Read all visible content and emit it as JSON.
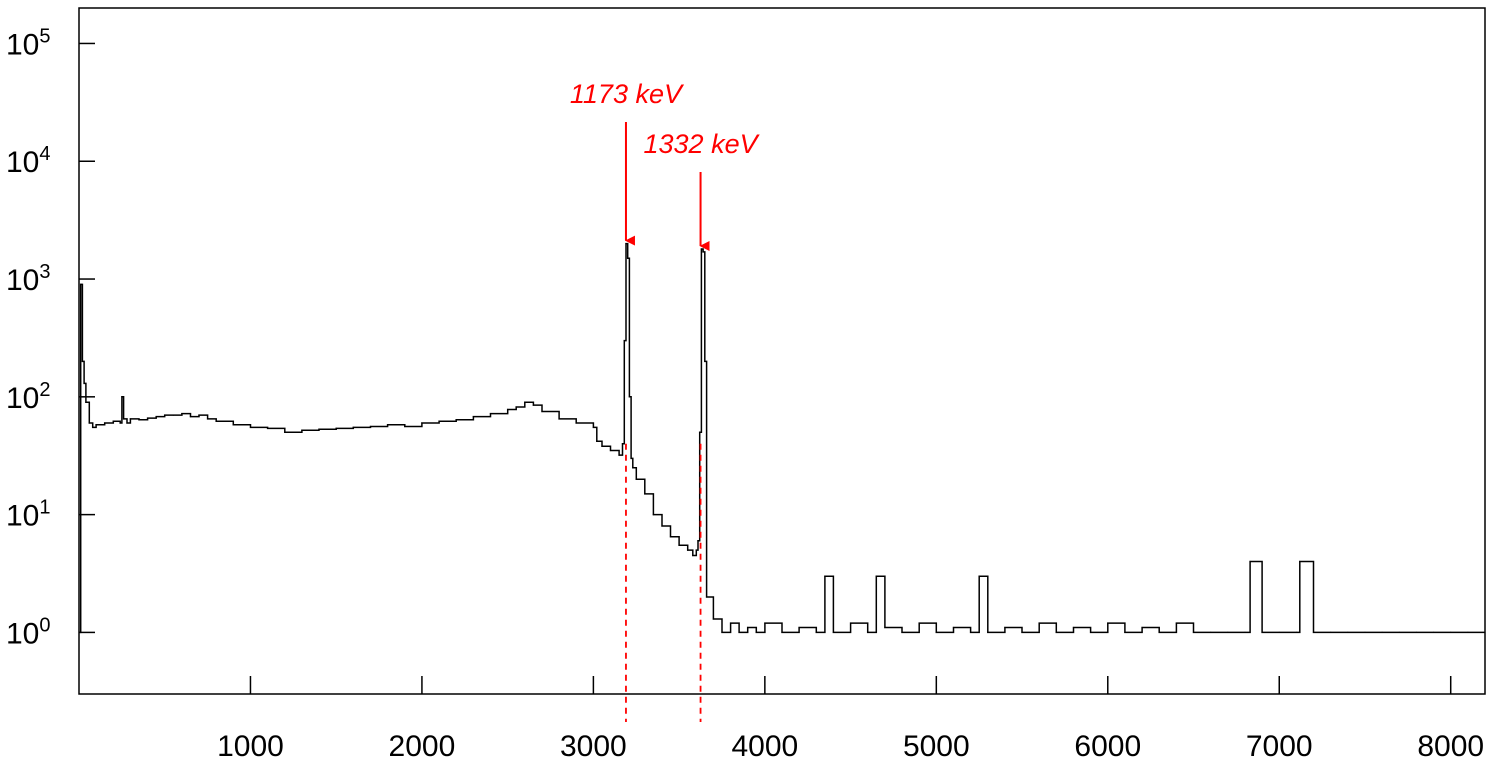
{
  "chart_data": {
    "type": "line",
    "title": "",
    "xlabel": "",
    "ylabel": "",
    "xlim": [
      0,
      8200
    ],
    "ylim": [
      0.3,
      200000
    ],
    "y_scale": "log",
    "grid": false,
    "x_ticks": [
      1000,
      2000,
      3000,
      4000,
      5000,
      6000,
      7000,
      8000
    ],
    "x_tick_labels": [
      "1000",
      "2000",
      "3000",
      "4000",
      "5000",
      "6000",
      "7000",
      "8000"
    ],
    "y_ticks": [
      {
        "value": 1,
        "base": "10",
        "exp": "0"
      },
      {
        "value": 10,
        "base": "10",
        "exp": "1"
      },
      {
        "value": 100,
        "base": "10",
        "exp": "2"
      },
      {
        "value": 1000,
        "base": "10",
        "exp": "3"
      },
      {
        "value": 10000,
        "base": "10",
        "exp": "4"
      },
      {
        "value": 100000,
        "base": "10",
        "exp": "5"
      }
    ],
    "series": [
      {
        "color": "#000000",
        "x": [
          5,
          10,
          15,
          20,
          30,
          40,
          60,
          80,
          100,
          150,
          200,
          240,
          250,
          260,
          280,
          300,
          350,
          400,
          450,
          500,
          550,
          600,
          650,
          700,
          750,
          800,
          900,
          1000,
          1100,
          1200,
          1300,
          1400,
          1500,
          1600,
          1700,
          1800,
          1900,
          2000,
          2100,
          2200,
          2300,
          2400,
          2500,
          2550,
          2600,
          2650,
          2700,
          2800,
          2900,
          3000,
          3020,
          3050,
          3100,
          3150,
          3170,
          3180,
          3190,
          3200,
          3210,
          3220,
          3230,
          3250,
          3300,
          3350,
          3400,
          3450,
          3500,
          3550,
          3580,
          3600,
          3610,
          3620,
          3630,
          3640,
          3650,
          3660,
          3700,
          3750,
          3800,
          3850,
          3900,
          3950,
          4000,
          4100,
          4200,
          4300,
          4350,
          4400,
          4500,
          4600,
          4650,
          4700,
          4800,
          4900,
          5000,
          5100,
          5200,
          5250,
          5300,
          5400,
          5500,
          5600,
          5700,
          5800,
          5900,
          6000,
          6100,
          6200,
          6300,
          6400,
          6500,
          6600,
          6700,
          6800,
          6830,
          6900,
          7000,
          7100,
          7120,
          7200,
          7300,
          7400,
          7500,
          7600,
          7700,
          7800,
          7900,
          8000,
          8100,
          8200
        ],
        "y": [
          1,
          900,
          900,
          200,
          130,
          90,
          60,
          55,
          58,
          60,
          62,
          60,
          100,
          65,
          60,
          65,
          64,
          66,
          68,
          70,
          70,
          72,
          68,
          70,
          65,
          62,
          58,
          55,
          54,
          50,
          52,
          53,
          54,
          55,
          56,
          58,
          56,
          60,
          62,
          64,
          68,
          72,
          78,
          82,
          90,
          85,
          75,
          65,
          60,
          55,
          42,
          38,
          35,
          32,
          40,
          300,
          2000,
          1500,
          100,
          30,
          25,
          20,
          15,
          10,
          8,
          6.5,
          5.5,
          5,
          4.5,
          5,
          6,
          50,
          1800,
          1700,
          200,
          2,
          1.3,
          1,
          1.2,
          1,
          1.1,
          1,
          1.2,
          1,
          1.1,
          1,
          3,
          1,
          1.2,
          1,
          3,
          1.1,
          1,
          1.2,
          1,
          1.1,
          1,
          3,
          1,
          1.1,
          1,
          1.2,
          1,
          1.1,
          1,
          1.2,
          1,
          1.1,
          1,
          1.2,
          1,
          1,
          1,
          1,
          4,
          1,
          1,
          1,
          4,
          1,
          1,
          1,
          1,
          1,
          1,
          1,
          1,
          1,
          1,
          1
        ]
      }
    ],
    "annotations": [
      {
        "label": "1173 keV",
        "x": 3190,
        "y_arrow_tip": 2000,
        "color": "#ff0000"
      },
      {
        "label": "1332 keV",
        "x": 3625,
        "y_arrow_tip": 1800,
        "color": "#ff0000"
      }
    ]
  }
}
